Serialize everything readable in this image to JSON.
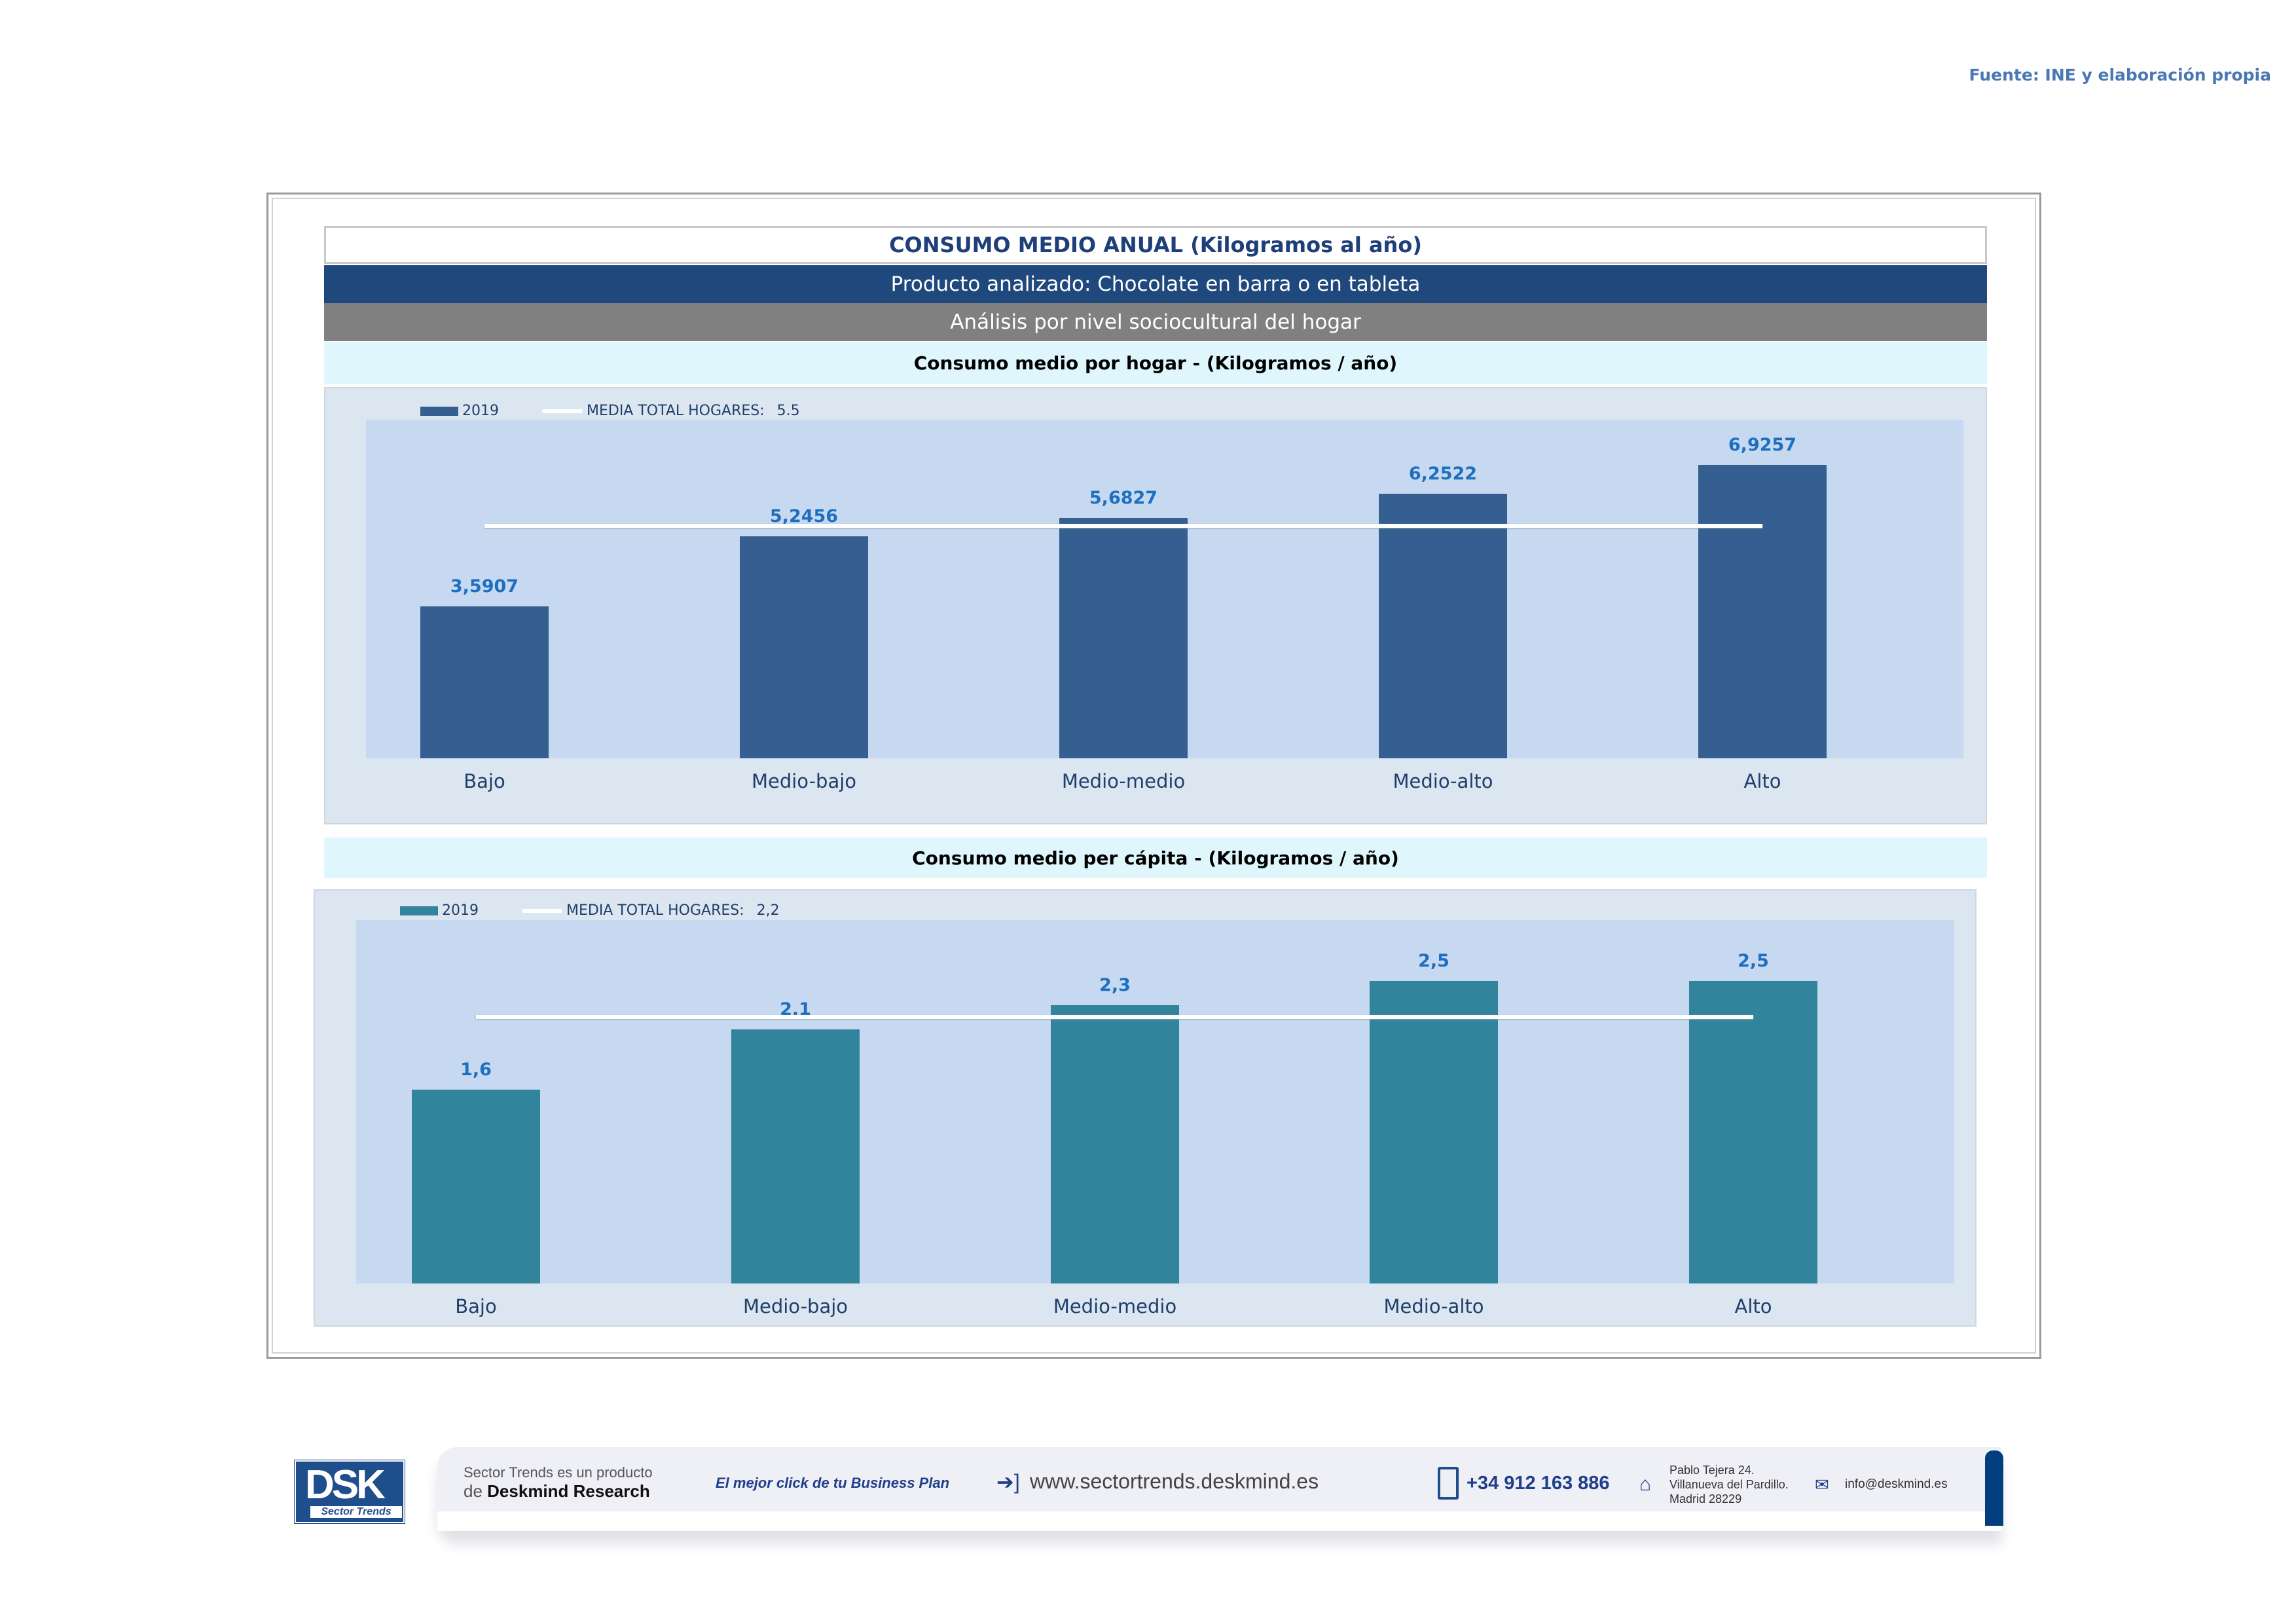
{
  "source": "Fuente: INE y elaboración propia",
  "header": {
    "title": "CONSUMO MEDIO ANUAL (Kilogramos al año)",
    "product": "Producto analizado: Chocolate en barra o en tableta",
    "analysis": "Análisis por nivel sociocultural del hogar"
  },
  "colors": {
    "bar1": "#365f91",
    "bar2": "#31849b",
    "mean": "#ffffff",
    "label": "#1f6fc0"
  },
  "chart_data": [
    {
      "type": "bar",
      "title": "Consumo medio por hogar -  (Kilogramos / año)",
      "categories": [
        "Bajo",
        "Medio-bajo",
        "Medio-medio",
        "Medio-alto",
        "Alto"
      ],
      "series": [
        {
          "name": "2019",
          "values": [
            3.5907,
            5.2456,
            5.6827,
            6.2522,
            6.9257
          ],
          "labels": [
            "3,5907",
            "5,2456",
            "5,6827",
            "6,2522",
            "6,9257"
          ]
        }
      ],
      "mean": {
        "name": "MEDIA TOTAL  HOGARES:",
        "label": "5.5",
        "value": 5.5
      },
      "ylim": [
        0,
        8
      ],
      "grid": false,
      "legend": "top-left"
    },
    {
      "type": "bar",
      "title": "Consumo medio per cápita -  (Kilogramos / año)",
      "categories": [
        "Bajo",
        "Medio-bajo",
        "Medio-medio",
        "Medio-alto",
        "Alto"
      ],
      "series": [
        {
          "name": "2019",
          "values": [
            1.6,
            2.1,
            2.3,
            2.5,
            2.5
          ],
          "labels": [
            "1,6",
            "2,1",
            "2,3",
            "2,5",
            "2,5"
          ]
        }
      ],
      "mean": {
        "name": "MEDIA TOTAL  HOGARES:",
        "label": "2,2",
        "value": 2.2
      },
      "ylim": [
        0,
        3
      ],
      "grid": false,
      "legend": "top-left"
    }
  ],
  "footer": {
    "logo": "DSK",
    "logo_sub": "Sector Trends",
    "line1": "Sector Trends es un producto",
    "line2_pre": "de ",
    "line2_brand": "Deskmind Research",
    "slogan": "El mejor click de tu Business Plan",
    "web": "www.sectortrends.deskmind.es",
    "phone": "+34 912 163 886",
    "addr1": "Pablo Tejera 24.",
    "addr2": "Villanueva del Pardillo.",
    "addr3": "Madrid 28229",
    "email": "info@deskmind.es"
  }
}
